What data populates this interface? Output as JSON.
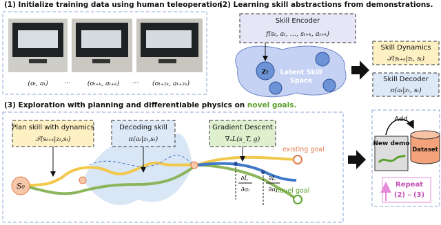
{
  "panel1": {
    "title": "(1) Initialize training data using human teleoperation.",
    "labels": [
      "(oₜ, aₜ)",
      "···",
      "(oₜ₊ₖ, aₜ₊ₖ)",
      "···",
      "(oₜ₊₂ₖ, aₜ₊₂ₖ)"
    ]
  },
  "panel2": {
    "title": "(2) Learning skill abstractions from demonstrations.",
    "encoder": {
      "title": "Skill Encoder",
      "formula": "f(sₜ, aₜ, …, sₜ₊ₖ, aₜ₊ₖ)"
    },
    "latent": {
      "z": "zₜ",
      "label": [
        "Latent Skill",
        "Space"
      ]
    },
    "dynamics": {
      "title": "Skill Dynamics",
      "formula": "𝒯(sₜ₊ₖ|zₜ, sₜ)"
    },
    "decoder": {
      "title": "Skill Decoder",
      "formula": "π(aₜ|zₜ, sₜ)"
    }
  },
  "panel3": {
    "title": "(3) Exploration with planning and differentiable physics on",
    "title_highlight": "novel goals.",
    "plan": {
      "title": "Plan skill with dynamics",
      "formula": "𝒯(sₜ₊ₖ|zₜ,sₜ)"
    },
    "decode": {
      "title": "Decoding skill",
      "formula": "π(aₜ|zₜ,sₜ)"
    },
    "gradient": {
      "title": "Gradient Descent",
      "formula": "∇ₐL(s_T, g)"
    },
    "start": "S₀",
    "existing_goal": "existing goal",
    "novel_goal": "novel goal",
    "grad_i": [
      "∂L",
      "∂aᵢ"
    ],
    "grad_j": [
      "∂L",
      "∂aⱼ"
    ],
    "loop": {
      "add": "Add",
      "new_demo": "New demo",
      "dataset": "Dataset",
      "repeat": "Repeat",
      "repeat_steps": "(2) – (3)"
    }
  }
}
